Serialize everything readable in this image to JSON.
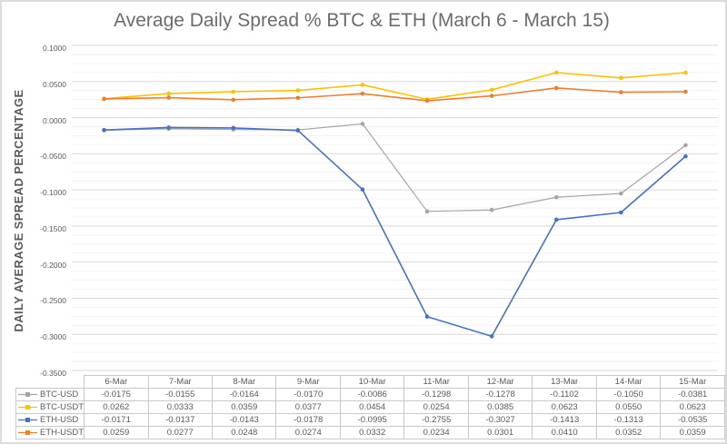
{
  "chart_data": {
    "type": "line",
    "title": "Average Daily Spread % BTC & ETH (March 6 - March 15)",
    "ylabel": "DAILY AVERAGE SPREAD PERCENTAGE",
    "xlabel": "",
    "categories": [
      "6-Mar",
      "7-Mar",
      "8-Mar",
      "9-Mar",
      "10-Mar",
      "11-Mar",
      "12-Mar",
      "13-Mar",
      "14-Mar",
      "15-Mar"
    ],
    "series": [
      {
        "name": "BTC-USD",
        "color": "#A5A5A5",
        "values": [
          -0.0175,
          -0.0155,
          -0.0164,
          -0.017,
          -0.0086,
          -0.1298,
          -0.1278,
          -0.1102,
          -0.105,
          -0.0381
        ]
      },
      {
        "name": "BTC-USDT",
        "color": "#FFC000",
        "values": [
          0.0262,
          0.0333,
          0.0359,
          0.0377,
          0.0454,
          0.0254,
          0.0385,
          0.0623,
          0.055,
          0.0623
        ]
      },
      {
        "name": "ETH-USD",
        "color": "#4472C4",
        "values": [
          -0.0171,
          -0.0137,
          -0.0143,
          -0.0178,
          -0.0995,
          -0.2755,
          -0.3027,
          -0.1413,
          -0.1313,
          -0.0535
        ]
      },
      {
        "name": "ETH-USDT",
        "color": "#ED7D31",
        "values": [
          0.0259,
          0.0277,
          0.0248,
          0.0274,
          0.0332,
          0.0234,
          0.0301,
          0.041,
          0.0352,
          0.0359
        ]
      }
    ],
    "ylim": [
      -0.35,
      0.1
    ],
    "y_major_unit": 0.05,
    "y_minor_unit": 0.0125,
    "y_ticks": [
      "0.1000",
      "0.0500",
      "0.0000",
      "-0.0500",
      "-0.1000",
      "-0.1500",
      "-0.2000",
      "-0.2500",
      "-0.3000",
      "-0.3500"
    ],
    "value_decimals": 4,
    "grid": true,
    "legend_position": "table-left",
    "colors": {
      "grid_major": "#D9D9D9",
      "grid_minor": "#F2F2F2",
      "table_border": "#C9C9C9",
      "axis_text": "#595959",
      "title_text": "#6B6B6B"
    }
  }
}
